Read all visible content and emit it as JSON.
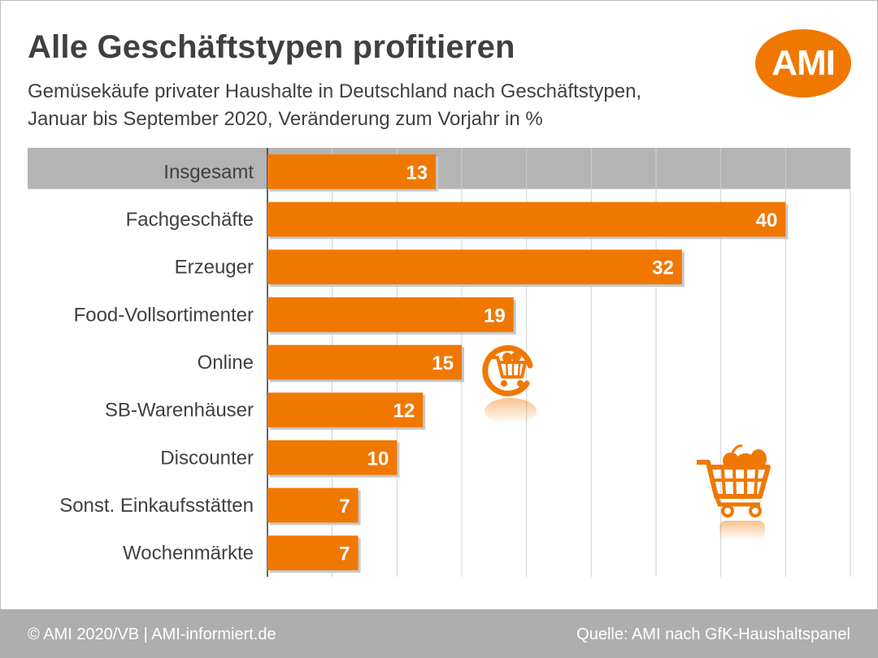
{
  "header": {
    "title": "Alle Geschäftstypen profitieren",
    "subtitle_line1": "Gemüsekäufe privater Haushalte in Deutschland nach Geschäftstypen,",
    "subtitle_line2": "Januar bis September 2020, Veränderung zum Vorjahr in %",
    "logo_text": "AMI"
  },
  "footer": {
    "left": "© AMI 2020/VB | AMI-informiert.de",
    "right": "Quelle: AMI nach GfK-Haushaltspanel"
  },
  "icons": [
    "online-shopping-cart-icon",
    "shopping-cart-icon"
  ],
  "colors": {
    "bar": "#f07800",
    "highlight_row": "#b4b4b4",
    "text": "#404040",
    "grid": "#cfcfcf",
    "footer": "#aeaeae"
  },
  "chart_data": {
    "type": "bar",
    "orientation": "horizontal",
    "title": "Alle Geschäftstypen profitieren",
    "xlabel": "",
    "ylabel": "",
    "categories": [
      "Insgesamt",
      "Fachgeschäfte",
      "Erzeuger",
      "Food-Vollsortimenter",
      "Online",
      "SB-Warenhäuser",
      "Discounter",
      "Sonst. Einkaufsstätten",
      "Wochenmärkte"
    ],
    "values": [
      13,
      40,
      32,
      19,
      15,
      12,
      10,
      7,
      7
    ],
    "highlighted_category": "Insgesamt",
    "xlim": [
      0,
      45
    ],
    "grid_step": 5,
    "grid": true
  }
}
